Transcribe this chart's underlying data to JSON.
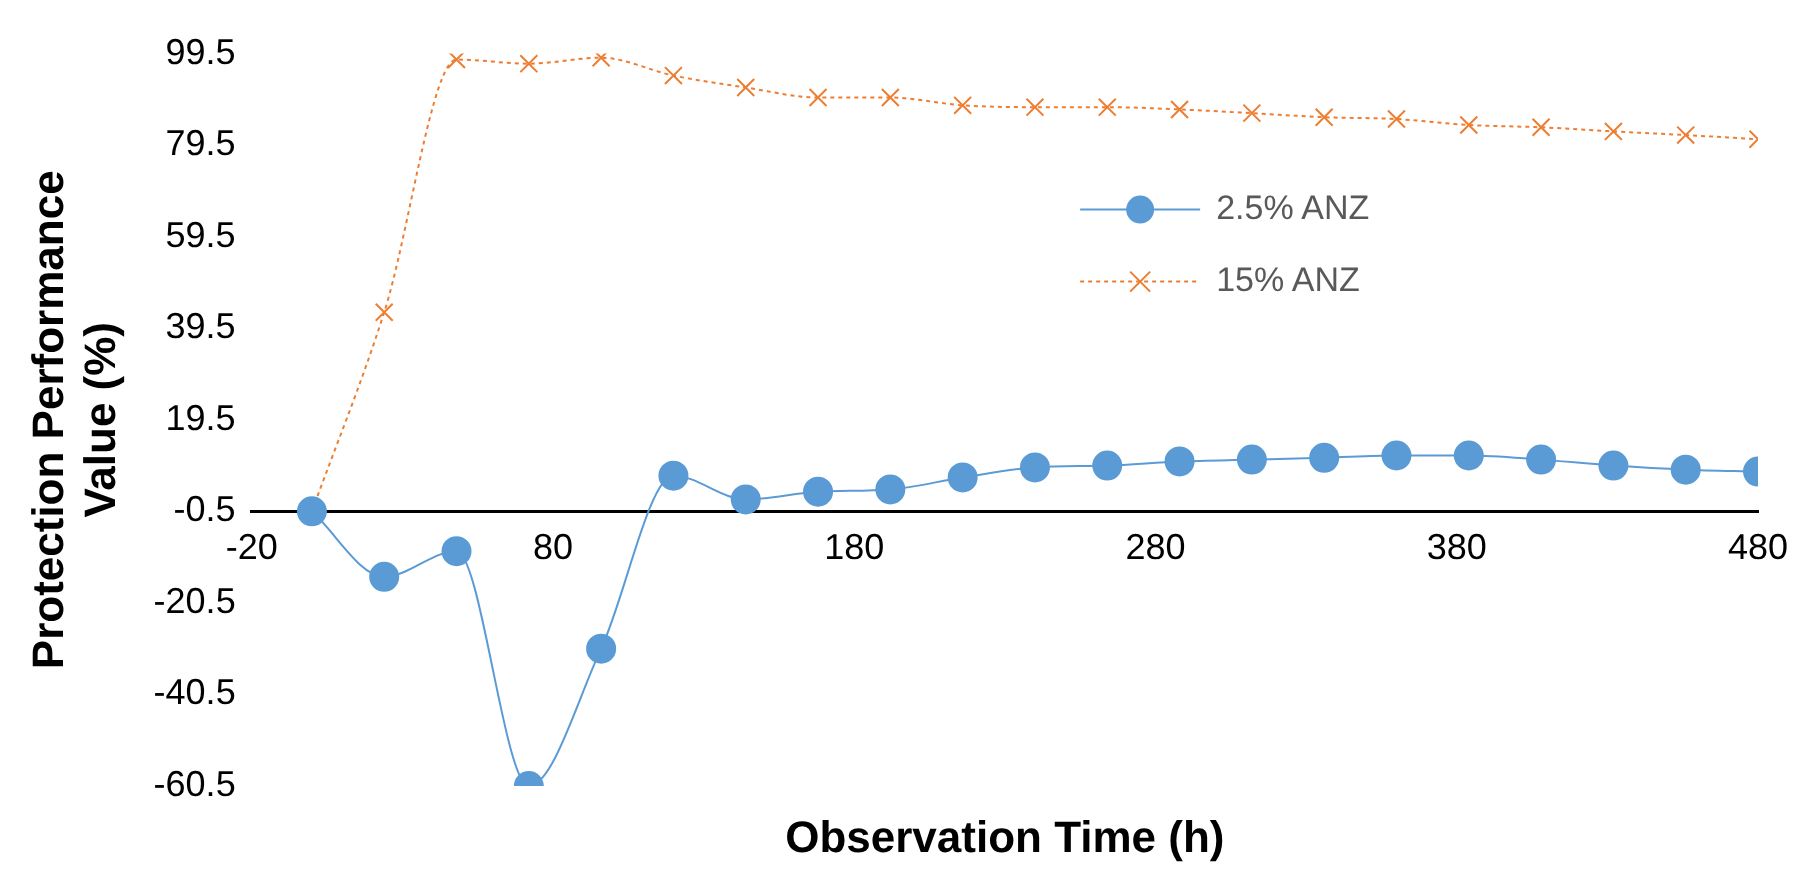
{
  "chart_data": {
    "type": "line",
    "xlabel": "Observation Time (h)",
    "ylabel": "Protection Performance Value (%)",
    "x": [
      0,
      24,
      48,
      72,
      96,
      120,
      144,
      168,
      192,
      216,
      240,
      264,
      288,
      312,
      336,
      360,
      384,
      408,
      432,
      456,
      480
    ],
    "series": [
      {
        "name": "2.5% ANZ",
        "color": "#5b9bd5",
        "marker": "circle",
        "line_style": "solid",
        "values": [
          -0.5,
          -14.8,
          -9.2,
          -60.5,
          -30.5,
          7.3,
          2.1,
          3.8,
          4.3,
          6.9,
          9.1,
          9.5,
          10.4,
          10.8,
          11.2,
          11.7,
          11.7,
          10.8,
          9.5,
          8.6,
          8.2
        ]
      },
      {
        "name": "15% ANZ",
        "color": "#ed7d31",
        "marker": "cross",
        "line_style": "dotted",
        "values": [
          -0.5,
          43,
          98.2,
          97.3,
          98.6,
          94.7,
          92.1,
          89.9,
          89.9,
          88.2,
          87.8,
          87.8,
          87.3,
          86.5,
          85.6,
          85.2,
          83.9,
          83.4,
          82.5,
          81.7,
          80.8
        ]
      }
    ],
    "xlim": [
      -20,
      480
    ],
    "xticks": [
      -20,
      80,
      180,
      280,
      380,
      480
    ],
    "ylim": [
      -60.5,
      99.5
    ],
    "yticks": [
      -60.5,
      -40.5,
      -20.5,
      -0.5,
      19.5,
      39.5,
      59.5,
      79.5,
      99.5
    ],
    "grid": false,
    "legend": "top right"
  }
}
